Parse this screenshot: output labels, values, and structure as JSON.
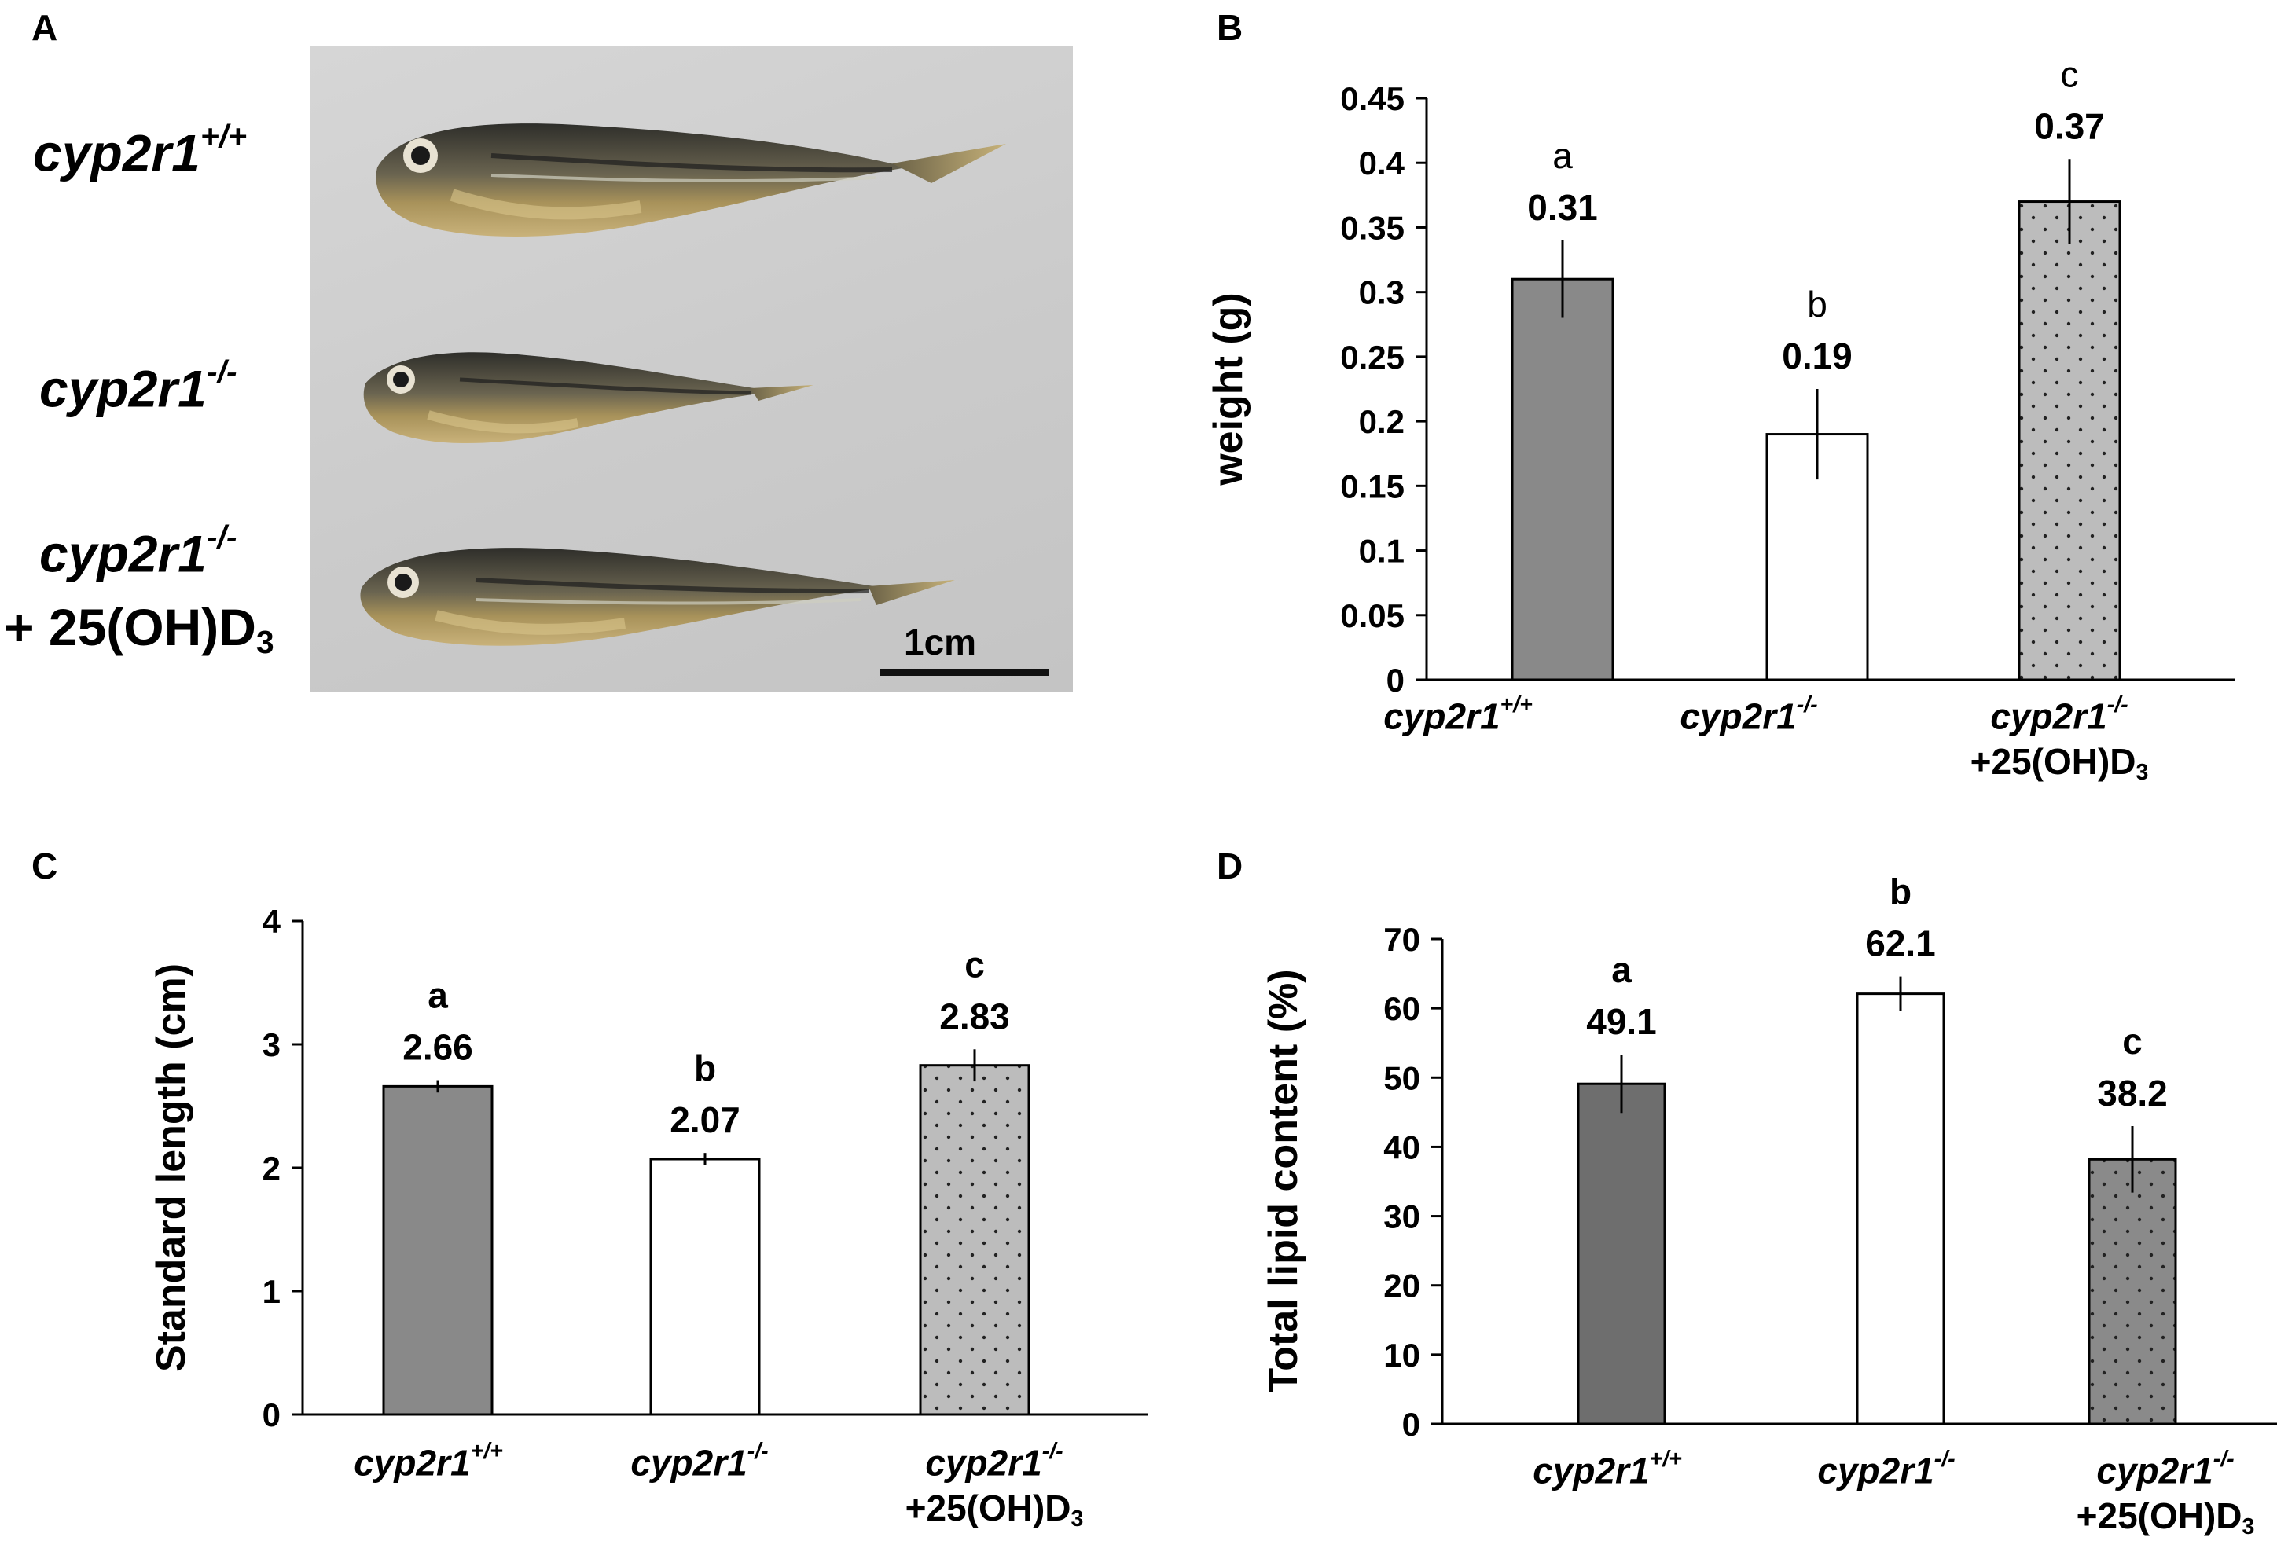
{
  "panels": {
    "A": "A",
    "B": "B",
    "C": "C",
    "D": "D"
  },
  "photo": {
    "labels": [
      {
        "base": "cyp2r1",
        "sup": "+/+"
      },
      {
        "base": "cyp2r1",
        "sup": "-/-"
      },
      {
        "base": "cyp2r1",
        "sup": "-/-",
        "line2_prefix": "+ 25(OH)D",
        "line2_sub": "3"
      }
    ],
    "scale_bar_label": "1cm"
  },
  "groups": [
    {
      "base": "cyp2r1",
      "sup": "+/+"
    },
    {
      "base": "cyp2r1",
      "sup": "-/-"
    },
    {
      "base": "cyp2r1",
      "sup": "-/-",
      "line2_prefix": "+25(OH)D",
      "line2_sub": "3"
    }
  ],
  "colors": {
    "wildtype_B_C": "#898989",
    "wildtype_D": "#6e6e6e",
    "mutant": "#ffffff",
    "treated_B_C": "#bcbcbc",
    "treated_D": "#8a8a8a"
  },
  "chart_data": [
    {
      "panel": "B",
      "type": "bar",
      "categories": [
        "cyp2r1+/+",
        "cyp2r1-/-",
        "cyp2r1-/- +25(OH)D3"
      ],
      "values": [
        0.31,
        0.19,
        0.37
      ],
      "value_labels": [
        "0.31",
        "0.19",
        "0.37"
      ],
      "error": [
        0.03,
        0.035,
        0.033
      ],
      "significance": [
        "a",
        "b",
        "c"
      ],
      "ylabel": "weight (g)",
      "ylim": [
        0,
        0.45
      ],
      "yticks": [
        0,
        0.05,
        0.1,
        0.15,
        0.2,
        0.25,
        0.3,
        0.35,
        0.4,
        0.45
      ],
      "ytick_labels": [
        "0",
        "0.05",
        "0.1",
        "0.15",
        "0.2",
        "0.25",
        "0.3",
        "0.35",
        "0.4",
        "0.45"
      ],
      "grid": false
    },
    {
      "panel": "C",
      "type": "bar",
      "categories": [
        "cyp2r1+/+",
        "cyp2r1-/-",
        "cyp2r1-/- +25(OH)D3"
      ],
      "values": [
        2.66,
        2.07,
        2.83
      ],
      "value_labels": [
        "2.66",
        "2.07",
        "2.83"
      ],
      "error": [
        0.05,
        0.05,
        0.13
      ],
      "significance": [
        "a",
        "b",
        "c"
      ],
      "ylabel": "Standard length (cm)",
      "ylim": [
        0,
        4
      ],
      "yticks": [
        0,
        1,
        2,
        3,
        4
      ],
      "ytick_labels": [
        "0",
        "1",
        "2",
        "3",
        "4"
      ],
      "grid": false
    },
    {
      "panel": "D",
      "type": "bar",
      "categories": [
        "cyp2r1+/+",
        "cyp2r1-/-",
        "cyp2r1-/- +25(OH)D3"
      ],
      "values": [
        49.1,
        62.1,
        38.2
      ],
      "value_labels": [
        "49.1",
        "62.1",
        "38.2"
      ],
      "error": [
        4.2,
        2.5,
        4.8
      ],
      "significance": [
        "a",
        "b",
        "c"
      ],
      "ylabel": "Total lipid content (%)",
      "ylim": [
        0,
        70
      ],
      "yticks": [
        0,
        10,
        20,
        30,
        40,
        50,
        60,
        70
      ],
      "ytick_labels": [
        "0",
        "10",
        "20",
        "30",
        "40",
        "50",
        "60",
        "70"
      ],
      "grid": false
    }
  ]
}
